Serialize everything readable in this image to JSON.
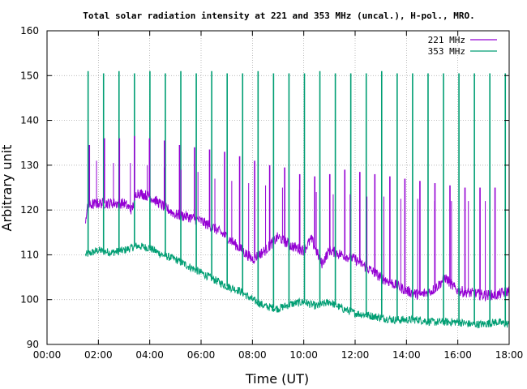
{
  "chart_data": {
    "type": "line",
    "title": "Total solar radiation intensity at 221 and 353 MHz (uncal.), H-pol., MRO.",
    "xlabel": "Time (UT)",
    "ylabel": "Arbitrary unit",
    "xlim": [
      0,
      18
    ],
    "ylim": [
      90,
      160
    ],
    "grid": true,
    "legend_position": "top-right",
    "x_ticks": [
      {
        "value": 0,
        "label": "00:00"
      },
      {
        "value": 2,
        "label": "02:00"
      },
      {
        "value": 4,
        "label": "04:00"
      },
      {
        "value": 6,
        "label": "06:00"
      },
      {
        "value": 8,
        "label": "08:00"
      },
      {
        "value": 10,
        "label": "10:00"
      },
      {
        "value": 12,
        "label": "12:00"
      },
      {
        "value": 14,
        "label": "14:00"
      },
      {
        "value": 16,
        "label": "16:00"
      },
      {
        "value": 18,
        "label": "18:00"
      }
    ],
    "y_ticks": [
      {
        "value": 90,
        "label": "90"
      },
      {
        "value": 100,
        "label": "100"
      },
      {
        "value": 110,
        "label": "110"
      },
      {
        "value": 120,
        "label": "120"
      },
      {
        "value": 130,
        "label": "130"
      },
      {
        "value": 140,
        "label": "140"
      },
      {
        "value": 150,
        "label": "150"
      },
      {
        "value": 160,
        "label": "160"
      }
    ],
    "series": [
      {
        "name": "221 MHz",
        "color": "#9400d3",
        "x": [
          1.5,
          1.6,
          2.0,
          2.5,
          3.0,
          3.3,
          3.5,
          4.0,
          4.5,
          5.0,
          5.5,
          6.0,
          6.5,
          7.0,
          7.5,
          8.0,
          8.5,
          9.0,
          9.5,
          10.0,
          10.3,
          10.7,
          11.0,
          11.5,
          12.0,
          12.5,
          13.0,
          13.5,
          14.0,
          14.5,
          15.0,
          15.3,
          15.5,
          15.8,
          16.0,
          16.5,
          17.0,
          17.5,
          18.0
        ],
        "values": [
          118,
          121,
          121.5,
          121.5,
          121.5,
          120,
          124,
          123,
          121,
          119,
          118.5,
          117.5,
          116,
          114,
          111.5,
          109,
          111,
          114,
          112,
          111,
          113.5,
          108,
          111,
          110,
          109,
          107,
          105,
          103.5,
          102,
          101,
          102,
          103.5,
          105,
          103,
          102,
          101.5,
          101,
          101,
          102
        ],
        "spike_max": [
          134.5,
          136,
          136,
          136.5,
          136,
          135.5,
          134.5,
          134,
          133.5,
          133,
          132,
          131,
          130,
          129.5,
          128,
          127.5,
          128,
          129,
          128.5,
          128,
          127.5,
          127,
          126.5,
          126,
          125.5,
          125,
          125,
          125
        ],
        "spike_min": [
          131,
          130.5,
          130.5,
          130,
          129.5,
          129,
          128.5,
          127,
          126.5,
          126,
          125.5,
          125,
          124.5,
          124,
          123.5,
          123.5,
          123,
          123,
          122.5,
          122.5,
          122,
          122,
          122,
          122
        ]
      },
      {
        "name": "353 MHz",
        "color": "#009e73",
        "x": [
          1.5,
          2.0,
          2.5,
          3.0,
          3.5,
          4.0,
          4.5,
          5.0,
          5.5,
          6.0,
          6.5,
          7.0,
          7.5,
          8.0,
          8.5,
          9.0,
          9.5,
          10.0,
          10.5,
          11.0,
          11.5,
          12.0,
          12.5,
          13.0,
          13.5,
          14.0,
          14.5,
          15.0,
          15.5,
          16.0,
          16.5,
          17.0,
          17.5,
          18.0
        ],
        "values": [
          110,
          111,
          110.5,
          111,
          112,
          111.5,
          110,
          109,
          107.5,
          106,
          104.5,
          103,
          102,
          100,
          98.5,
          98,
          99,
          99.5,
          98.5,
          99.5,
          98,
          97,
          96.5,
          96,
          95.5,
          95.5,
          95.5,
          95,
          95,
          95,
          94.5,
          94.5,
          95,
          94.5
        ],
        "spike_max": [
          151,
          150.5,
          151,
          150.5,
          151,
          150.5,
          151,
          150.5,
          151,
          150.5,
          150.5,
          151,
          150.5,
          150.5,
          150.5,
          151,
          150.5,
          150.5,
          150.5,
          151,
          150.5,
          150.5,
          150.5,
          150.5,
          150.5,
          150.5,
          150.5,
          150.5
        ]
      }
    ]
  }
}
